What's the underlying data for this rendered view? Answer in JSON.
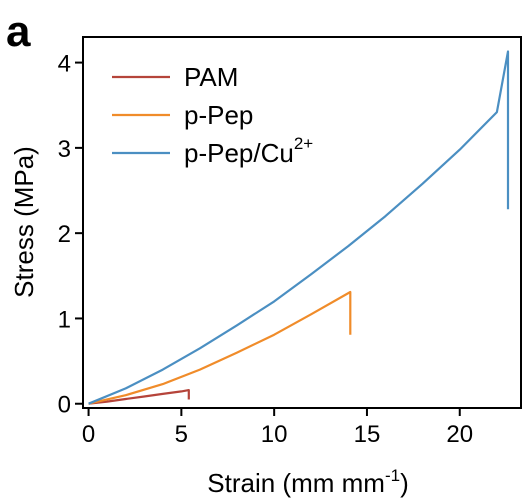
{
  "chart_data": {
    "type": "line",
    "panel_label": "a",
    "xlabel": "Strain (mm mm",
    "xlabel_sup": "-1",
    "xlabel_end": ")",
    "ylabel": "Stress (MPa)",
    "xlim": [
      -0.3,
      23.3
    ],
    "ylim": [
      -0.05,
      4.3
    ],
    "x_ticks": [
      0,
      5,
      10,
      15,
      20
    ],
    "y_ticks": [
      0,
      1,
      2,
      3,
      4
    ],
    "legend_position": "top-left",
    "series": [
      {
        "name": "PAM",
        "color": "#b5443a",
        "x": [
          0,
          1,
          2,
          3,
          4,
          5,
          5.4,
          5.4
        ],
        "y": [
          0,
          0.025,
          0.055,
          0.085,
          0.115,
          0.145,
          0.16,
          0.05
        ]
      },
      {
        "name": "p-Pep",
        "color": "#f08c2a",
        "x": [
          0,
          2,
          4,
          6,
          8,
          10,
          12,
          14.1,
          14.1
        ],
        "y": [
          0,
          0.1,
          0.23,
          0.4,
          0.6,
          0.81,
          1.05,
          1.31,
          0.81
        ]
      },
      {
        "name": "p-Pep/Cu",
        "name_sup": "2+",
        "color": "#4b8fc2",
        "x": [
          0,
          2,
          4,
          6,
          8,
          10,
          12,
          14,
          16,
          18,
          20,
          22,
          22.6,
          22.6
        ],
        "y": [
          0,
          0.18,
          0.4,
          0.65,
          0.92,
          1.2,
          1.52,
          1.85,
          2.2,
          2.58,
          2.98,
          3.42,
          4.13,
          2.28
        ]
      }
    ]
  }
}
